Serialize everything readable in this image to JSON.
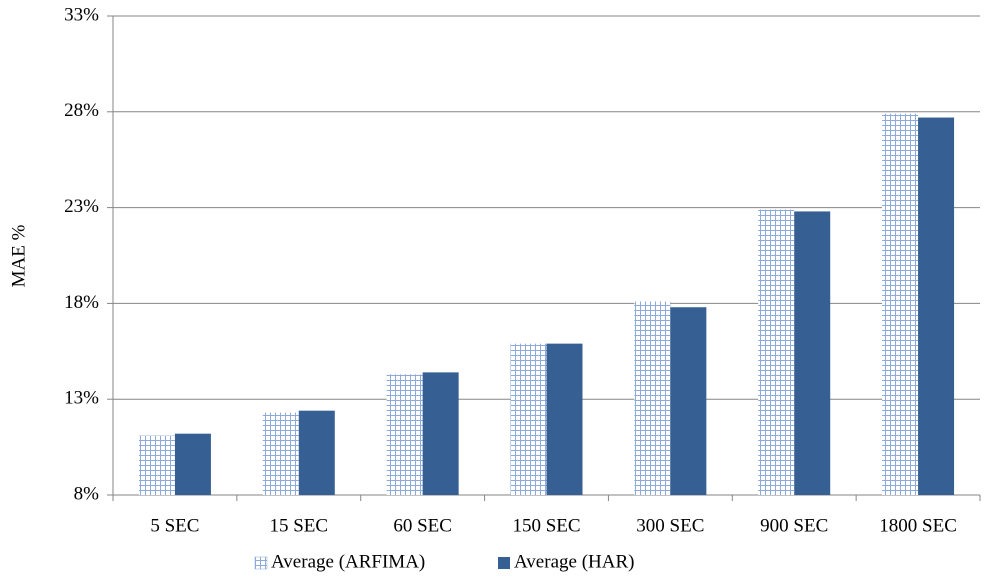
{
  "chart_data": {
    "type": "bar",
    "y_label": "MAE %",
    "categories": [
      "5 SEC",
      "15 SEC",
      "60 SEC",
      "150 SEC",
      "300 SEC",
      "900 SEC",
      "1800 SEC"
    ],
    "series": [
      {
        "name": "Average (ARFIMA)",
        "color": "#8eaadb",
        "pattern": "grid",
        "values": [
          11.1,
          12.3,
          14.3,
          15.9,
          18.1,
          22.9,
          27.9
        ]
      },
      {
        "name": "Average (HAR)",
        "color": "#365f93",
        "values": [
          11.2,
          12.4,
          14.4,
          15.9,
          17.8,
          22.8,
          27.7
        ]
      }
    ],
    "ylim": [
      8,
      33
    ],
    "yticks": [
      {
        "value": 8,
        "label": "8%"
      },
      {
        "value": 13,
        "label": "13%"
      },
      {
        "value": 18,
        "label": "18%"
      },
      {
        "value": 23,
        "label": "23%"
      },
      {
        "value": 28,
        "label": "28%"
      },
      {
        "value": 33,
        "label": "33%"
      }
    ],
    "grid": true,
    "legend": "bottom"
  }
}
